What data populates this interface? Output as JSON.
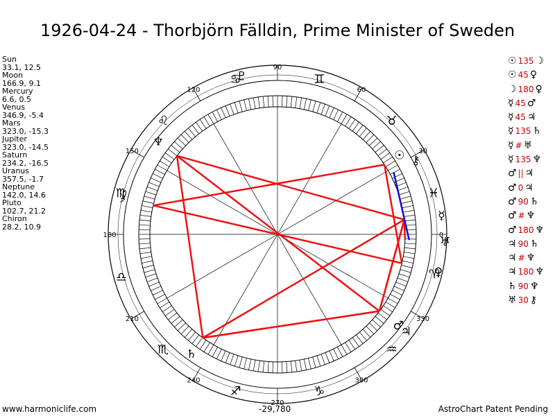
{
  "title": "1926-04-24 - Thorbjörn Fälldin, Prime Minister of Sweden",
  "positions": [
    {
      "name": "Sun",
      "value": "33.1, 12.5"
    },
    {
      "name": "Moon",
      "value": "166.9, 9.1"
    },
    {
      "name": "Mercury",
      "value": "6.6, 0.5"
    },
    {
      "name": "Venus",
      "value": "346.9, -5.4"
    },
    {
      "name": "Mars",
      "value": "323.0, -15.3"
    },
    {
      "name": "Jupiter",
      "value": "323.0, -14.5"
    },
    {
      "name": "Saturn",
      "value": "234.2, -16.5"
    },
    {
      "name": "Uranus",
      "value": "357.5, -1.7"
    },
    {
      "name": "Neptune",
      "value": "142.0, 14.6"
    },
    {
      "name": "Pluto",
      "value": "102.7, 21.2"
    },
    {
      "name": "Chiron",
      "value": "28.2, 10.9"
    }
  ],
  "aspects": [
    {
      "a": "☉",
      "asp": "135",
      "b": "☽"
    },
    {
      "a": "☉",
      "asp": "45",
      "b": "♀"
    },
    {
      "a": "☽",
      "asp": "180",
      "b": "♀"
    },
    {
      "a": "☿",
      "asp": "45",
      "b": "♂"
    },
    {
      "a": "☿",
      "asp": "45",
      "b": "♃"
    },
    {
      "a": "☿",
      "asp": "135",
      "b": "♄"
    },
    {
      "a": "☿",
      "asp": "#",
      "b": "♅"
    },
    {
      "a": "☿",
      "asp": "135",
      "b": "♆"
    },
    {
      "a": "♂",
      "asp": "||",
      "b": "♃"
    },
    {
      "a": "♂",
      "asp": "0",
      "b": "♃"
    },
    {
      "a": "♂",
      "asp": "90",
      "b": "♄"
    },
    {
      "a": "♂",
      "asp": "#",
      "b": "♆"
    },
    {
      "a": "♂",
      "asp": "180",
      "b": "♆"
    },
    {
      "a": "♃",
      "asp": "90",
      "b": "♄"
    },
    {
      "a": "♃",
      "asp": "#",
      "b": "♆"
    },
    {
      "a": "♃",
      "asp": "180",
      "b": "♆"
    },
    {
      "a": "♄",
      "asp": "90",
      "b": "♆"
    },
    {
      "a": "♅",
      "asp": "30",
      "b": "⚷"
    }
  ],
  "footer": {
    "left": "www.harmoniclife.com",
    "middle": "-29,780",
    "right": "AstroChart Patent Pending"
  },
  "wheel": {
    "degree_labels": [
      "90",
      "120",
      "60",
      "150",
      "30",
      "180",
      "210",
      "330",
      "240",
      "300",
      "270"
    ],
    "signs": [
      "♈",
      "♉",
      "♊",
      "♋",
      "♌",
      "♍",
      "♎",
      "♏",
      "♐",
      "♑",
      "♒",
      "♓"
    ],
    "planet_glyphs": {
      "Sun": "☉",
      "Moon": "☽",
      "Mercury": "☿",
      "Venus": "♀",
      "Mars": "♂",
      "Jupiter": "♃",
      "Saturn": "♄",
      "Uranus": "♅",
      "Neptune": "♆",
      "Pluto": "♇",
      "Chiron": "⚷"
    },
    "colors": {
      "aspect": "#ee1111",
      "conjunction": "#1111cc",
      "planet": "#cc0000",
      "ring": "#000000"
    }
  }
}
